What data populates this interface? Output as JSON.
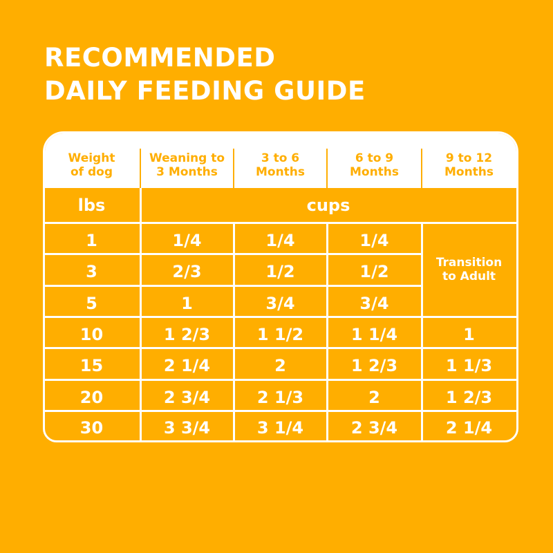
{
  "title": {
    "lines": [
      "RECOMMENDED",
      "DAILY FEEDING GUIDE"
    ]
  },
  "table": {
    "header": [
      "Weight\nof dog",
      "Weaning to\n3 Months",
      "3 to 6\nMonths",
      "6 to 9\nMonths",
      "9 to 12\nMonths"
    ],
    "units": {
      "weight": "lbs",
      "amount": "cups"
    },
    "rows": [
      [
        "1",
        "1/4",
        "1/4",
        "1/4"
      ],
      [
        "3",
        "2/3",
        "1/2",
        "1/2"
      ],
      [
        "5",
        "1",
        "3/4",
        "3/4"
      ],
      [
        "10",
        "1 2/3",
        "1 1/2",
        "1 1/4",
        "1"
      ],
      [
        "15",
        "2 1/4",
        "2",
        "1 2/3",
        "1 1/3"
      ],
      [
        "20",
        "2 3/4",
        "2 1/3",
        "2",
        "1 2/3"
      ],
      [
        "30",
        "3 3/4",
        "3 1/4",
        "2 3/4",
        "2 1/4"
      ]
    ],
    "merged_cell": "Transition\nto Adult"
  }
}
